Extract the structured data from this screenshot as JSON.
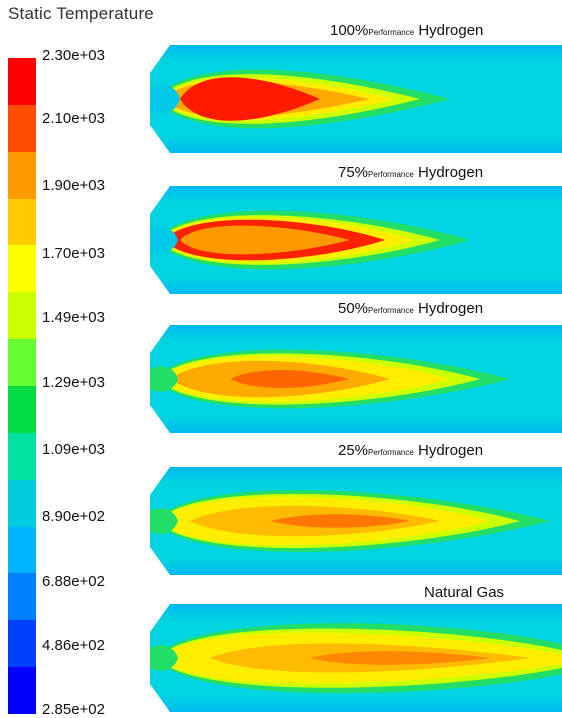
{
  "legend": {
    "title": "Static Temperature",
    "ticks": [
      "2.30e+03",
      "2.10e+03",
      "1.90e+03",
      "1.70e+03",
      "1.49e+03",
      "1.29e+03",
      "1.09e+03",
      "8.90e+02",
      "6.88e+02",
      "4.86e+02",
      "2.85e+02"
    ],
    "colors": [
      "#ff0000",
      "#ff4d00",
      "#ff9900",
      "#ffcc00",
      "#ffff00",
      "#ccff00",
      "#66ff33",
      "#00dd44",
      "#00e0a0",
      "#00ccdd",
      "#00b4ff",
      "#0080ff",
      "#0040ff",
      "#0000ff"
    ]
  },
  "cases": [
    {
      "prefix": "100%",
      "perf": "Performance",
      "fuel": "Hydrogen"
    },
    {
      "prefix": "75%",
      "perf": "Performance",
      "fuel": "Hydrogen"
    },
    {
      "prefix": "50%",
      "perf": "Performance",
      "fuel": "Hydrogen"
    },
    {
      "prefix": "25%",
      "perf": "Performance",
      "fuel": "Hydrogen"
    },
    {
      "prefix": "",
      "perf": "",
      "fuel": "Natural Gas"
    }
  ]
}
